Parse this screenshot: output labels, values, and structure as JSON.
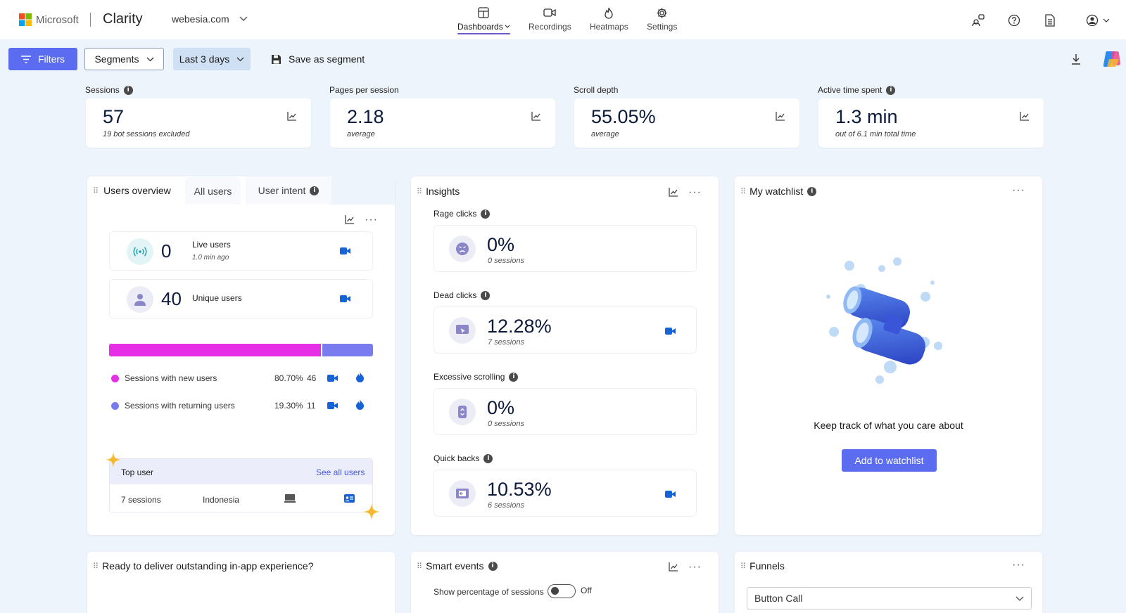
{
  "header": {
    "brand": "Microsoft",
    "app_name": "Clarity",
    "project": "webesia.com",
    "nav": [
      {
        "label": "Dashboards",
        "icon": "dashboard-icon"
      },
      {
        "label": "Recordings",
        "icon": "camera-icon"
      },
      {
        "label": "Heatmaps",
        "icon": "flame-icon"
      },
      {
        "label": "Settings",
        "icon": "gear-icon"
      }
    ],
    "right_icons": [
      "share-users-icon",
      "help-icon",
      "document-icon",
      "account-icon"
    ]
  },
  "toolbar": {
    "filters_label": "Filters",
    "segments_label": "Segments",
    "date_range": "Last 3 days",
    "save_segment_label": "Save as segment"
  },
  "metrics": [
    {
      "label": "Sessions",
      "value": "57",
      "sub": "19 bot sessions excluded",
      "has_info": true
    },
    {
      "label": "Pages per session",
      "value": "2.18",
      "sub": "average",
      "has_info": false
    },
    {
      "label": "Scroll depth",
      "value": "55.05%",
      "sub": "average",
      "has_info": false
    },
    {
      "label": "Active time spent",
      "value": "1.3 min",
      "sub": "out of 6.1 min total time",
      "has_info": true
    }
  ],
  "users_panel": {
    "tabs": [
      "Users overview",
      "All users",
      "User intent"
    ],
    "live": {
      "value": "0",
      "label": "Live users",
      "sub": "1.0 min ago"
    },
    "unique": {
      "value": "40",
      "label": "Unique users"
    },
    "split": {
      "new_fraction": 0.807
    },
    "legend": [
      {
        "label": "Sessions with new users",
        "percent": "80.70%",
        "count": "46",
        "color": "#e62ee6"
      },
      {
        "label": "Sessions with returning users",
        "percent": "19.30%",
        "count": "11",
        "color": "#7b7bf0"
      }
    ],
    "top_user": {
      "title": "Top user",
      "link": "See all users",
      "sessions": "7 sessions",
      "country": "Indonesia"
    }
  },
  "insights": {
    "title": "Insights",
    "items": [
      {
        "label": "Rage clicks",
        "value": "0%",
        "sub": "0 sessions",
        "has_recording": false
      },
      {
        "label": "Dead clicks",
        "value": "12.28%",
        "sub": "7 sessions",
        "has_recording": true
      },
      {
        "label": "Excessive scrolling",
        "value": "0%",
        "sub": "0 sessions",
        "has_recording": false
      },
      {
        "label": "Quick backs",
        "value": "10.53%",
        "sub": "6 sessions",
        "has_recording": true
      }
    ]
  },
  "watchlist": {
    "title": "My watchlist",
    "message": "Keep track of what you care about",
    "button": "Add to watchlist"
  },
  "bottom": {
    "promo_title": "Ready to deliver outstanding in-app experience?",
    "smart_events_title": "Smart events",
    "toggle_label": "Show percentage of sessions",
    "toggle_state": "Off",
    "funnels_title": "Funnels",
    "funnel_select": "Button Call"
  },
  "colors": {
    "accent": "#5b6cf0",
    "new_users": "#e62ee6",
    "returning_users": "#7b7bf0",
    "video_icon": "#1763d6",
    "page_bg": "#eef4fb"
  }
}
